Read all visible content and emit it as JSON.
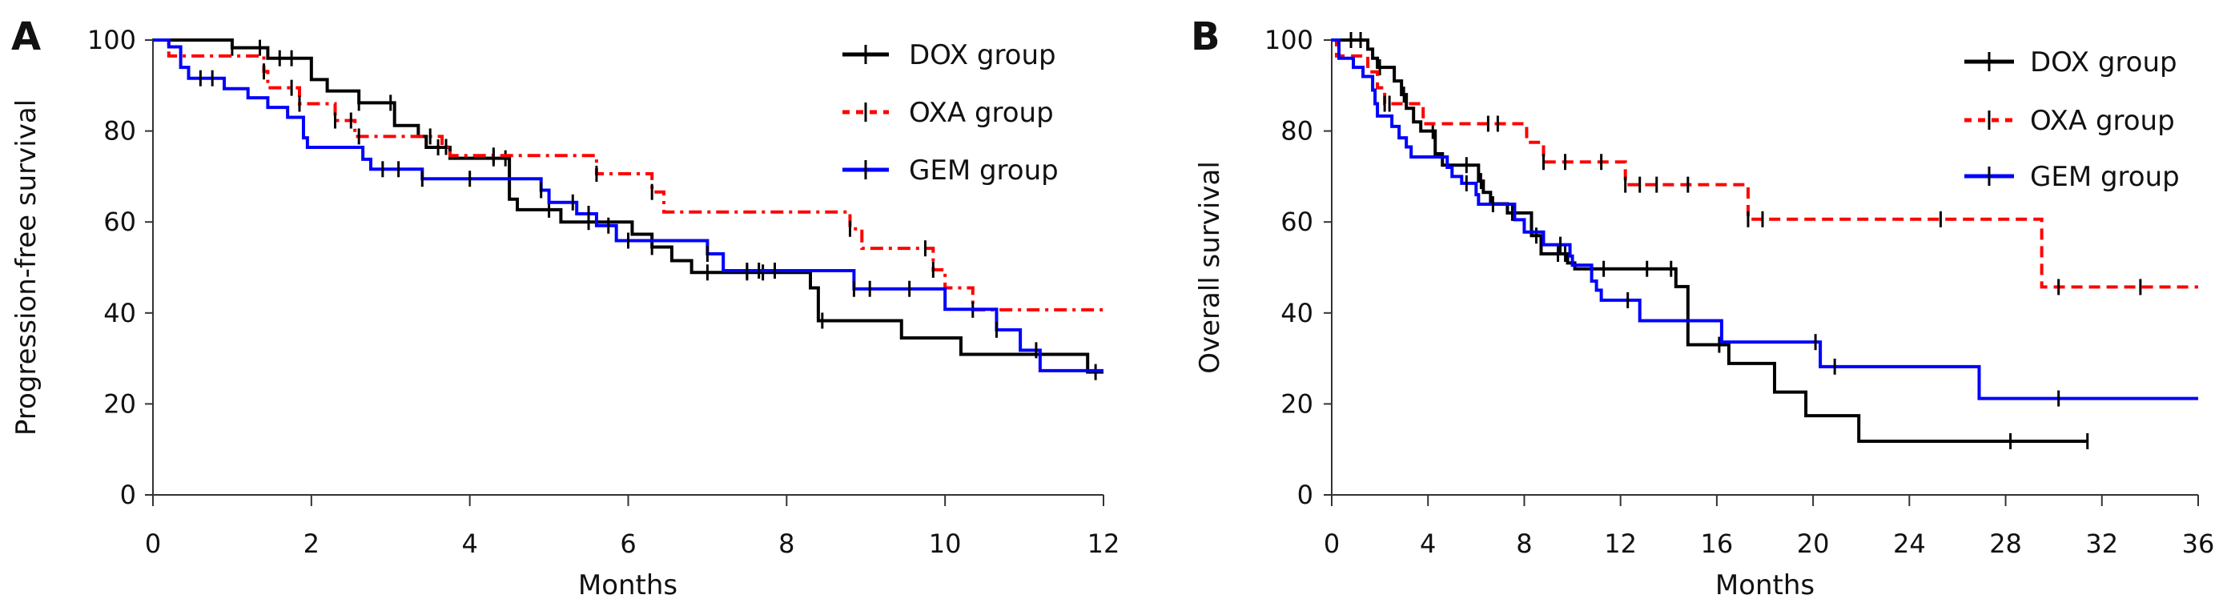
{
  "chart_data": [
    {
      "type": "line",
      "panel_label": "A",
      "xlabel": "Months",
      "ylabel": "Progression-free survival",
      "xlim": [
        0,
        12
      ],
      "ylim": [
        0,
        100
      ],
      "xticks": [
        0,
        2,
        4,
        6,
        8,
        10,
        12
      ],
      "yticks": [
        0,
        20,
        40,
        60,
        80,
        100
      ],
      "grid": false,
      "legend": "top-right",
      "series": [
        {
          "name": "DOX group",
          "color": "#000000",
          "dash": "solid",
          "steps": [
            [
              0,
              100
            ],
            [
              1.0,
              98.3
            ],
            [
              1.45,
              96
            ],
            [
              2.0,
              91.3
            ],
            [
              2.2,
              88.8
            ],
            [
              2.6,
              86.2
            ],
            [
              3.05,
              81.2
            ],
            [
              3.35,
              78.8
            ],
            [
              3.45,
              76.4
            ],
            [
              3.75,
              74
            ],
            [
              4.5,
              65
            ],
            [
              4.6,
              62.7
            ],
            [
              5.15,
              60
            ],
            [
              6.05,
              57.3
            ],
            [
              6.3,
              54.5
            ],
            [
              6.55,
              51.5
            ],
            [
              6.8,
              48.9
            ],
            [
              8.3,
              45.5
            ],
            [
              8.4,
              38.3
            ],
            [
              9.45,
              34.5
            ],
            [
              10.2,
              30.9
            ],
            [
              11.8,
              27
            ]
          ],
          "end": 12,
          "censored": [
            1.0,
            1.35,
            1.6,
            1.75,
            2.6,
            3.0,
            3.6,
            4.3,
            4.45,
            5.0,
            5.5,
            6.3,
            7.0,
            7.5,
            7.7,
            8.45,
            11.9
          ]
        },
        {
          "name": "OXA group",
          "color": "#ff0000",
          "dash": "dashdot",
          "steps": [
            [
              0,
              100
            ],
            [
              0.2,
              96.5
            ],
            [
              1.4,
              93.1
            ],
            [
              1.45,
              89.5
            ],
            [
              1.85,
              86
            ],
            [
              2.3,
              82.3
            ],
            [
              2.55,
              78.8
            ],
            [
              3.65,
              76.5
            ],
            [
              3.75,
              74.6
            ],
            [
              5.6,
              70.6
            ],
            [
              6.3,
              66.6
            ],
            [
              6.45,
              62.2
            ],
            [
              8.8,
              58.5
            ],
            [
              8.95,
              54.2
            ],
            [
              9.85,
              49.5
            ],
            [
              10.0,
              45.5
            ],
            [
              10.35,
              40.7
            ]
          ],
          "end": 12,
          "censored": [
            1.4,
            1.75,
            1.85,
            2.3,
            2.5,
            2.6,
            3.5,
            3.7,
            4.3,
            5.6,
            6.3,
            8.8,
            9.75,
            9.85,
            10.35
          ]
        },
        {
          "name": "GEM group",
          "color": "#0000ff",
          "dash": "solid",
          "steps": [
            [
              0,
              100
            ],
            [
              0.2,
              98.5
            ],
            [
              0.35,
              94
            ],
            [
              0.45,
              91.6
            ],
            [
              0.9,
              89.3
            ],
            [
              1.2,
              87.3
            ],
            [
              1.45,
              85.2
            ],
            [
              1.7,
              83
            ],
            [
              1.9,
              78.5
            ],
            [
              1.95,
              76.4
            ],
            [
              2.65,
              73.8
            ],
            [
              2.75,
              71.6
            ],
            [
              3.4,
              69.5
            ],
            [
              4.9,
              67
            ],
            [
              5.0,
              64.3
            ],
            [
              5.35,
              61.8
            ],
            [
              5.6,
              59.2
            ],
            [
              5.85,
              55.9
            ],
            [
              7.0,
              53
            ],
            [
              7.2,
              49.3
            ],
            [
              8.85,
              45.3
            ],
            [
              10.0,
              40.8
            ],
            [
              10.65,
              36.3
            ],
            [
              10.95,
              31.8
            ],
            [
              11.2,
              27.3
            ]
          ],
          "end": 12,
          "censored": [
            0.6,
            0.75,
            2.9,
            3.1,
            3.4,
            4.0,
            4.9,
            5.3,
            5.5,
            5.75,
            6.0,
            7.0,
            7.5,
            7.65,
            7.85,
            8.85,
            9.05,
            9.55,
            10.65,
            11.15
          ]
        }
      ]
    },
    {
      "type": "line",
      "panel_label": "B",
      "xlabel": "Months",
      "ylabel": "Overall survival",
      "xlim": [
        0,
        36
      ],
      "ylim": [
        0,
        100
      ],
      "xticks": [
        0,
        4,
        8,
        12,
        16,
        20,
        24,
        28,
        32,
        36
      ],
      "yticks": [
        0,
        20,
        40,
        60,
        80,
        100
      ],
      "grid": false,
      "legend": "top-right",
      "series": [
        {
          "name": "DOX group",
          "color": "#000000",
          "dash": "solid",
          "steps": [
            [
              0,
              100
            ],
            [
              1.5,
              98
            ],
            [
              1.7,
              96
            ],
            [
              1.9,
              94
            ],
            [
              2.6,
              91
            ],
            [
              2.9,
              88
            ],
            [
              3.1,
              85
            ],
            [
              3.4,
              82
            ],
            [
              3.7,
              80
            ],
            [
              4.3,
              75
            ],
            [
              4.6,
              72.5
            ],
            [
              6.1,
              69
            ],
            [
              6.3,
              66.5
            ],
            [
              6.6,
              64
            ],
            [
              7.3,
              62
            ],
            [
              8.3,
              57
            ],
            [
              8.7,
              53
            ],
            [
              9.8,
              51
            ],
            [
              10.1,
              49.7
            ],
            [
              14.3,
              45.8
            ],
            [
              14.8,
              33
            ],
            [
              16.5,
              28.9
            ],
            [
              18.4,
              22.6
            ],
            [
              19.7,
              17.4
            ],
            [
              21.9,
              11.8
            ]
          ],
          "end": 31.4,
          "censored": [
            0.8,
            1.2,
            2.0,
            3.0,
            4.2,
            5.6,
            6.2,
            7.5,
            8.5,
            9.4,
            9.7,
            11.3,
            13.1,
            14.1,
            16.1,
            28.2,
            31.4
          ]
        },
        {
          "name": "OXA group",
          "color": "#ff0000",
          "dash": "dash",
          "steps": [
            [
              0,
              100
            ],
            [
              0.2,
              96.5
            ],
            [
              1.5,
              93
            ],
            [
              1.9,
              89.5
            ],
            [
              2.2,
              86
            ],
            [
              3.8,
              81.6
            ],
            [
              8.1,
              77.5
            ],
            [
              8.8,
              73.2
            ],
            [
              12.2,
              68.2
            ],
            [
              17.3,
              60.6
            ],
            [
              29.5,
              45.7
            ]
          ],
          "end": 36,
          "censored": [
            2.2,
            2.4,
            6.5,
            6.9,
            8.8,
            9.7,
            11.2,
            12.2,
            12.8,
            13.5,
            14.8,
            17.3,
            17.9,
            25.3,
            30.2,
            33.6
          ]
        },
        {
          "name": "GEM group",
          "color": "#0000ff",
          "dash": "solid",
          "steps": [
            [
              0,
              100
            ],
            [
              0.3,
              96
            ],
            [
              0.9,
              94
            ],
            [
              1.3,
              92
            ],
            [
              1.7,
              89
            ],
            [
              1.8,
              86
            ],
            [
              1.9,
              83.3
            ],
            [
              2.5,
              81
            ],
            [
              2.8,
              78.5
            ],
            [
              3.1,
              76.5
            ],
            [
              3.3,
              74.3
            ],
            [
              4.8,
              72
            ],
            [
              5.0,
              70
            ],
            [
              5.4,
              68.5
            ],
            [
              6.0,
              66
            ],
            [
              6.1,
              63.9
            ],
            [
              7.6,
              60.5
            ],
            [
              8.0,
              57.8
            ],
            [
              8.8,
              55
            ],
            [
              9.9,
              52.5
            ],
            [
              10.0,
              50.5
            ],
            [
              10.8,
              47
            ],
            [
              11.0,
              45
            ],
            [
              11.2,
              42.8
            ],
            [
              12.8,
              38.3
            ],
            [
              16.2,
              33.6
            ],
            [
              20.3,
              28.2
            ],
            [
              26.9,
              21.2
            ]
          ],
          "end": 36,
          "censored": [
            5.6,
            6.7,
            9.5,
            12.3,
            20.1,
            20.9,
            30.2
          ]
        }
      ]
    }
  ]
}
